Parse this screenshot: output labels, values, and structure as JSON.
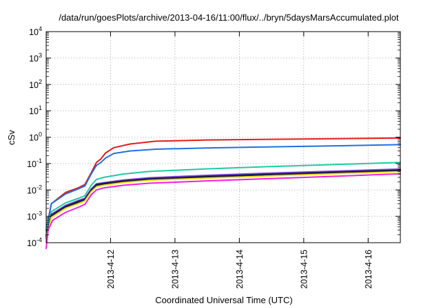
{
  "chart_data": {
    "type": "line",
    "title": "/data/run/goesPlots/archive/2013-04-16/11:00/flux/../bryn/5daysMarsAccumulated.plot",
    "xlabel": "Coordinated Universal Time (UTC)",
    "ylabel": "cSv",
    "y_scale": "log",
    "ylim_exponents": [
      -4,
      4
    ],
    "y_ticks": [
      {
        "base": "10",
        "exp": "4"
      },
      {
        "base": "10",
        "exp": "3"
      },
      {
        "base": "10",
        "exp": "2"
      },
      {
        "base": "10",
        "exp": "1"
      },
      {
        "base": "10",
        "exp": "0"
      },
      {
        "base": "10",
        "exp": "-1"
      },
      {
        "base": "10",
        "exp": "-2"
      },
      {
        "base": "10",
        "exp": "-3"
      },
      {
        "base": "10",
        "exp": "-4"
      }
    ],
    "xlim": [
      "2013-04-11 00:00",
      "2013-04-16 12:00"
    ],
    "x_ticks": [
      "2013-4-12",
      "2013-4-13",
      "2013-4-14",
      "2013-4-15",
      "2013-4-16"
    ],
    "x_tick_days": [
      1,
      2,
      3,
      4,
      5
    ],
    "grid": true,
    "series": [
      {
        "color": "#e41a1c",
        "points": [
          [
            0.0,
            0.0003
          ],
          [
            0.08,
            0.003
          ],
          [
            0.3,
            0.008
          ],
          [
            0.5,
            0.012
          ],
          [
            0.6,
            0.016
          ],
          [
            0.7,
            0.045
          ],
          [
            0.78,
            0.11
          ],
          [
            0.85,
            0.15
          ],
          [
            0.92,
            0.25
          ],
          [
            1.05,
            0.4
          ],
          [
            1.3,
            0.55
          ],
          [
            1.7,
            0.7
          ],
          [
            2.5,
            0.78
          ],
          [
            3.5,
            0.83
          ],
          [
            4.5,
            0.87
          ],
          [
            5.5,
            0.93
          ]
        ]
      },
      {
        "color": "#1f6fde",
        "points": [
          [
            0.0,
            0.0003
          ],
          [
            0.08,
            0.003
          ],
          [
            0.3,
            0.007
          ],
          [
            0.5,
            0.011
          ],
          [
            0.6,
            0.014
          ],
          [
            0.7,
            0.04
          ],
          [
            0.78,
            0.085
          ],
          [
            0.85,
            0.11
          ],
          [
            0.92,
            0.16
          ],
          [
            1.05,
            0.24
          ],
          [
            1.3,
            0.3
          ],
          [
            1.7,
            0.35
          ],
          [
            2.5,
            0.39
          ],
          [
            3.5,
            0.43
          ],
          [
            4.5,
            0.47
          ],
          [
            5.5,
            0.52
          ]
        ]
      },
      {
        "color": "#1fc9a0",
        "points": [
          [
            0.0,
            0.0003
          ],
          [
            0.08,
            0.0015
          ],
          [
            0.3,
            0.0032
          ],
          [
            0.5,
            0.0048
          ],
          [
            0.6,
            0.006
          ],
          [
            0.7,
            0.015
          ],
          [
            0.78,
            0.025
          ],
          [
            0.9,
            0.03
          ],
          [
            1.2,
            0.04
          ],
          [
            1.6,
            0.05
          ],
          [
            2.5,
            0.063
          ],
          [
            3.5,
            0.077
          ],
          [
            4.5,
            0.092
          ],
          [
            5.5,
            0.11
          ]
        ]
      },
      {
        "color": "#8b4fd8",
        "points": [
          [
            0.0,
            0.0002
          ],
          [
            0.08,
            0.0012
          ],
          [
            0.3,
            0.0026
          ],
          [
            0.5,
            0.004
          ],
          [
            0.6,
            0.0048
          ],
          [
            0.7,
            0.011
          ],
          [
            0.78,
            0.017
          ],
          [
            0.9,
            0.019
          ],
          [
            1.2,
            0.024
          ],
          [
            1.6,
            0.029
          ],
          [
            2.5,
            0.036
          ],
          [
            3.5,
            0.044
          ],
          [
            4.5,
            0.052
          ],
          [
            5.5,
            0.062
          ]
        ]
      },
      {
        "color": "#1b1b8a",
        "points": [
          [
            0.0,
            0.00018
          ],
          [
            0.08,
            0.0011
          ],
          [
            0.3,
            0.0024
          ],
          [
            0.5,
            0.0037
          ],
          [
            0.6,
            0.0045
          ],
          [
            0.7,
            0.01
          ],
          [
            0.78,
            0.016
          ],
          [
            0.9,
            0.018
          ],
          [
            1.2,
            0.022
          ],
          [
            1.6,
            0.027
          ],
          [
            2.5,
            0.033
          ],
          [
            3.5,
            0.04
          ],
          [
            4.5,
            0.048
          ],
          [
            5.5,
            0.057
          ]
        ]
      },
      {
        "color": "#202020",
        "points": [
          [
            0.0,
            0.00016
          ],
          [
            0.08,
            0.001
          ],
          [
            0.3,
            0.0022
          ],
          [
            0.5,
            0.0034
          ],
          [
            0.6,
            0.0042
          ],
          [
            0.7,
            0.0095
          ],
          [
            0.78,
            0.015
          ],
          [
            0.9,
            0.017
          ],
          [
            1.2,
            0.021
          ],
          [
            1.6,
            0.025
          ],
          [
            2.5,
            0.031
          ],
          [
            3.5,
            0.038
          ],
          [
            4.5,
            0.045
          ],
          [
            5.5,
            0.054
          ]
        ]
      },
      {
        "color": "#f0e020",
        "points": [
          [
            0.0,
            0.00015
          ],
          [
            0.08,
            0.0009
          ],
          [
            0.3,
            0.002
          ],
          [
            0.5,
            0.003
          ],
          [
            0.6,
            0.0038
          ],
          [
            0.7,
            0.0085
          ],
          [
            0.78,
            0.013
          ],
          [
            0.9,
            0.015
          ],
          [
            1.2,
            0.019
          ],
          [
            1.6,
            0.023
          ],
          [
            2.5,
            0.028
          ],
          [
            3.5,
            0.034
          ],
          [
            4.5,
            0.041
          ],
          [
            5.5,
            0.049
          ]
        ]
      },
      {
        "color": "#ee1ee0",
        "points": [
          [
            0.0,
            6e-05
          ],
          [
            0.03,
            0.0003
          ],
          [
            0.1,
            0.0007
          ],
          [
            0.3,
            0.0014
          ],
          [
            0.5,
            0.0022
          ],
          [
            0.6,
            0.0028
          ],
          [
            0.7,
            0.0065
          ],
          [
            0.78,
            0.01
          ],
          [
            0.9,
            0.012
          ],
          [
            1.2,
            0.015
          ],
          [
            1.6,
            0.018
          ],
          [
            2.5,
            0.022
          ],
          [
            3.5,
            0.027
          ],
          [
            4.5,
            0.033
          ],
          [
            5.5,
            0.041
          ]
        ]
      }
    ]
  }
}
